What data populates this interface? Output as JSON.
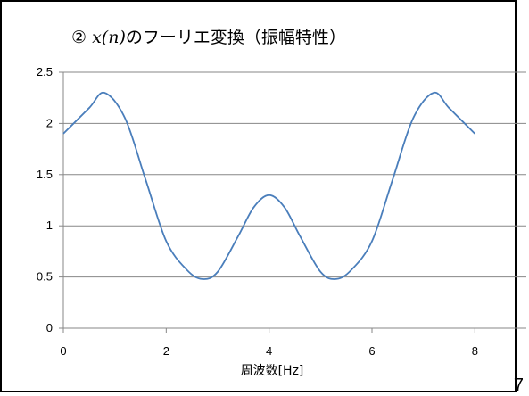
{
  "page_number": "7",
  "chart_data": {
    "type": "line",
    "title_prefix": "② ",
    "title_math": "x(n)",
    "title_suffix": "のフーリエ変換（振幅特性）",
    "xlabel": "周波数[Hz]",
    "ylabel": "",
    "xlim": [
      0,
      9
    ],
    "ylim": [
      0,
      2.5
    ],
    "x_ticks": [
      0,
      2,
      4,
      6,
      8
    ],
    "y_ticks": [
      0,
      0.5,
      1,
      1.5,
      2,
      2.5
    ],
    "x_tick_labels": [
      "0",
      "2",
      "4",
      "6",
      "8"
    ],
    "y_tick_labels": [
      "0",
      "0.5",
      "1",
      "1.5",
      "2",
      "2.5"
    ],
    "grid": "horizontal",
    "series_color": "#4a7ebb",
    "series": [
      {
        "name": "",
        "x": [
          0,
          0.5,
          0.8,
          1.2,
          1.6,
          2.0,
          2.4,
          2.7,
          3.0,
          3.4,
          3.7,
          4.0,
          4.3,
          4.6,
          5.0,
          5.3,
          5.6,
          6.0,
          6.4,
          6.8,
          7.2,
          7.5,
          8.0
        ],
        "y": [
          1.9,
          2.15,
          2.3,
          2.05,
          1.45,
          0.85,
          0.57,
          0.48,
          0.55,
          0.9,
          1.18,
          1.3,
          1.18,
          0.9,
          0.55,
          0.48,
          0.57,
          0.85,
          1.45,
          2.05,
          2.3,
          2.15,
          1.9
        ]
      }
    ]
  }
}
